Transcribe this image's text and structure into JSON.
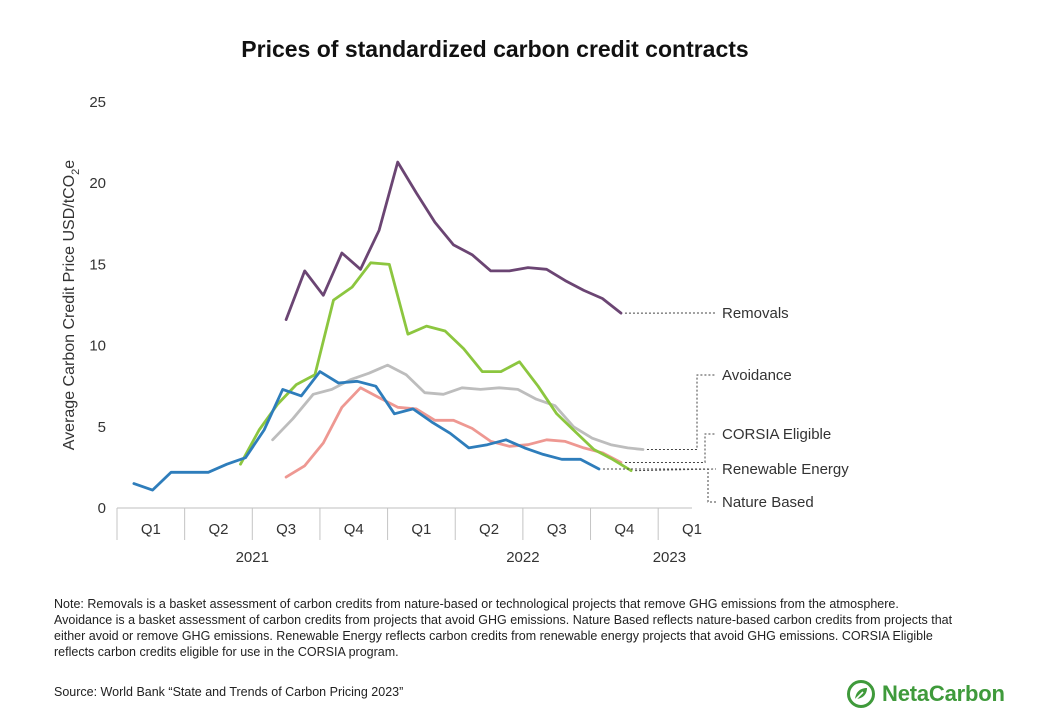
{
  "chart_data": {
    "type": "line",
    "title": "Prices of standardized carbon credit contracts",
    "ylabel": "Average Carbon Credit Price USD/tCO2e",
    "ylabel_parts": {
      "main": "Average Carbon Credit Price USD/tCO",
      "sub": "2",
      "tail": "e"
    },
    "ylim": [
      0,
      25
    ],
    "yticks": [
      "0",
      "5",
      "10",
      "15",
      "20",
      "25"
    ],
    "ytick_values": [
      0,
      5,
      10,
      15,
      20,
      25
    ],
    "xlim": [
      0,
      17
    ],
    "quarter_labels": [
      "Q1",
      "Q2",
      "Q3",
      "Q4",
      "Q1",
      "Q2",
      "Q3",
      "Q4",
      "Q1"
    ],
    "year_labels": [
      "2021",
      "2022",
      "2023"
    ],
    "series": [
      {
        "name": "Removals",
        "color": "#6b4573",
        "x": [
          5,
          5.55,
          6.1,
          6.65,
          7.2,
          7.75,
          8.3,
          8.85,
          9.4,
          9.95,
          10.5,
          11.05,
          11.6,
          12.15,
          12.7,
          13.25,
          13.8,
          14.35,
          14.9,
          15.45,
          16
        ],
        "values": [
          11.6,
          14.6,
          13.1,
          15.7,
          14.7,
          17.1,
          21.3,
          19.4,
          17.6,
          16.2,
          15.6,
          14.6,
          14.6,
          14.8,
          14.7,
          14.0,
          13.4,
          12.9,
          12.0,
          null,
          null
        ]
      },
      {
        "name": "Avoidance",
        "color": "#bdbdbd",
        "x": [
          4.6,
          5.2,
          5.8,
          6.35,
          6.9,
          7.45,
          8.0,
          8.55,
          9.1,
          9.65,
          10.2,
          10.75,
          11.3,
          11.85,
          12.4,
          12.95,
          13.5,
          14.05,
          14.6,
          15.1,
          15.55,
          16
        ],
        "values": [
          4.2,
          5.5,
          7.0,
          7.3,
          7.9,
          8.3,
          8.8,
          8.2,
          7.1,
          7.0,
          7.4,
          7.3,
          7.4,
          7.3,
          6.7,
          6.3,
          5.0,
          4.3,
          3.9,
          3.7,
          3.6,
          null
        ]
      },
      {
        "name": "CORSIA Eligible",
        "color": "#ee9892",
        "x": [
          5,
          5.55,
          6.1,
          6.65,
          7.2,
          7.75,
          8.3,
          8.85,
          9.4,
          9.95,
          10.5,
          11.05,
          11.6,
          12.15,
          12.7,
          13.25,
          13.8,
          14.35,
          14.9,
          15.45,
          16
        ],
        "values": [
          1.9,
          2.6,
          4.0,
          6.2,
          7.4,
          6.8,
          6.2,
          6.1,
          5.4,
          5.4,
          4.9,
          4.1,
          3.8,
          3.9,
          4.2,
          4.1,
          3.7,
          3.4,
          2.8,
          null,
          null
        ]
      },
      {
        "name": "Renewable Energy",
        "color": "#8cc63f",
        "x": [
          3.65,
          4.2,
          4.75,
          5.3,
          5.85,
          6.4,
          6.95,
          7.5,
          8.05,
          8.6,
          9.15,
          9.7,
          10.25,
          10.8,
          11.35,
          11.9,
          12.45,
          13.0,
          13.55,
          14.1,
          14.65,
          15.2,
          16
        ],
        "values": [
          2.7,
          4.8,
          6.4,
          7.6,
          8.2,
          12.8,
          13.6,
          15.1,
          15.0,
          10.7,
          11.2,
          10.9,
          9.8,
          8.4,
          8.4,
          9.0,
          7.5,
          5.8,
          4.7,
          3.6,
          3.0,
          2.3,
          null
        ]
      },
      {
        "name": "Nature Based",
        "color": "#2e7dbb",
        "x": [
          0.5,
          1.05,
          1.6,
          2.15,
          2.7,
          3.25,
          3.8,
          4.35,
          4.9,
          5.45,
          6.0,
          6.55,
          7.1,
          7.65,
          8.2,
          8.75,
          9.3,
          9.85,
          10.4,
          10.95,
          11.5,
          12.05,
          12.6,
          13.15,
          13.7,
          14.25,
          14.8,
          15.35,
          16
        ],
        "values": [
          1.5,
          1.1,
          2.2,
          2.2,
          2.2,
          2.7,
          3.1,
          4.8,
          7.3,
          6.9,
          8.4,
          7.7,
          7.8,
          7.5,
          5.8,
          6.1,
          5.3,
          4.6,
          3.7,
          3.9,
          4.2,
          3.7,
          3.3,
          3.0,
          3.0,
          2.4,
          null,
          null,
          null
        ]
      }
    ],
    "legend_order": [
      "Removals",
      "Avoidance",
      "CORSIA Eligible",
      "Renewable Energy",
      "Nature Based"
    ]
  },
  "note": "Note: Removals is a basket assessment of carbon credits from nature-based or technological projects that remove GHG emissions from the atmosphere. Avoidance is a basket assessment of carbon credits from projects that avoid GHG emissions. Nature Based reflects nature-based carbon credits from projects that either avoid or remove GHG emissions. Renewable Energy reflects carbon credits from renewable energy projects that avoid GHG emissions. CORSIA Eligible reflects carbon credits eligible for use in the CORSIA program.",
  "source": "Source: World Bank “State and Trends of Carbon Pricing 2023”",
  "brand": {
    "name": "NetaCarbon",
    "color": "#3f9a3b"
  }
}
